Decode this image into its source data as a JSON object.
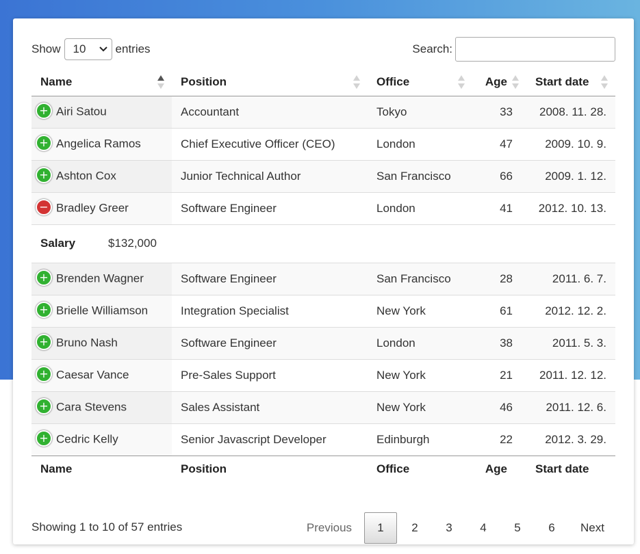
{
  "length": {
    "show_label": "Show",
    "selected": "10",
    "entries_label": "entries"
  },
  "search": {
    "label": "Search:",
    "value": ""
  },
  "columns": [
    "Name",
    "Position",
    "Office",
    "Age",
    "Start date"
  ],
  "rows": [
    {
      "name": "Airi Satou",
      "position": "Accountant",
      "office": "Tokyo",
      "age": "33",
      "start": "2008. 11. 28.",
      "expanded": false
    },
    {
      "name": "Angelica Ramos",
      "position": "Chief Executive Officer (CEO)",
      "office": "London",
      "age": "47",
      "start": "2009. 10. 9.",
      "expanded": false
    },
    {
      "name": "Ashton Cox",
      "position": "Junior Technical Author",
      "office": "San Francisco",
      "age": "66",
      "start": "2009. 1. 12.",
      "expanded": false
    },
    {
      "name": "Bradley Greer",
      "position": "Software Engineer",
      "office": "London",
      "age": "41",
      "start": "2012. 10. 13.",
      "expanded": true
    },
    {
      "name": "Brenden Wagner",
      "position": "Software Engineer",
      "office": "San Francisco",
      "age": "28",
      "start": "2011. 6. 7.",
      "expanded": false
    },
    {
      "name": "Brielle Williamson",
      "position": "Integration Specialist",
      "office": "New York",
      "age": "61",
      "start": "2012. 12. 2.",
      "expanded": false
    },
    {
      "name": "Bruno Nash",
      "position": "Software Engineer",
      "office": "London",
      "age": "38",
      "start": "2011. 5. 3.",
      "expanded": false
    },
    {
      "name": "Caesar Vance",
      "position": "Pre-Sales Support",
      "office": "New York",
      "age": "21",
      "start": "2011. 12. 12.",
      "expanded": false
    },
    {
      "name": "Cara Stevens",
      "position": "Sales Assistant",
      "office": "New York",
      "age": "46",
      "start": "2011. 12. 6.",
      "expanded": false
    },
    {
      "name": "Cedric Kelly",
      "position": "Senior Javascript Developer",
      "office": "Edinburgh",
      "age": "22",
      "start": "2012. 3. 29.",
      "expanded": false
    }
  ],
  "child_row": {
    "label": "Salary",
    "value": "$132,000"
  },
  "info": "Showing 1 to 10 of 57 entries",
  "pagination": {
    "previous": "Previous",
    "pages": [
      "1",
      "2",
      "3",
      "4",
      "5",
      "6"
    ],
    "current": "1",
    "next": "Next"
  },
  "colors": {
    "expand": "#31b131",
    "collapse": "#d33333",
    "background_gradient_start": "#3b74d4",
    "background_gradient_end": "#6ab4e0"
  }
}
